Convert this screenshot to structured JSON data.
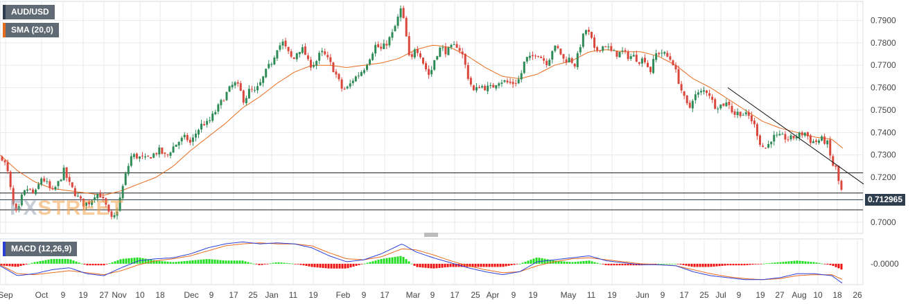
{
  "legend": {
    "symbol": "AUD/USD",
    "sma": "SMA (20,0)",
    "macd": "MACD (12,26,9)"
  },
  "watermark": {
    "fx": "FX",
    "street": "STREET"
  },
  "price_tag": "0.712965",
  "colors": {
    "up": "#2e8b57",
    "down": "#d9473d",
    "sma": "#e86c1e",
    "macd_line": "#2b3fd6",
    "signal_line": "#e86c1e",
    "hist_pos": "#22dd22",
    "hist_neg": "#ee1111",
    "grid": "#e9e9ee",
    "hline": "#1a1a1a"
  },
  "chart_data": {
    "type": "candlestick",
    "symbol": "AUD/USD",
    "price_axis": {
      "min": 0.695,
      "max": 0.7985,
      "ticks": [
        "0.7000",
        "0.7100",
        "0.7200",
        "0.7300",
        "0.7400",
        "0.7500",
        "0.7600",
        "0.7700",
        "0.7800",
        "0.7900"
      ]
    },
    "x_ticks": [
      "Sep",
      "Oct",
      "9",
      "19",
      "27",
      "Nov",
      "10",
      "18",
      "Dec",
      "9",
      "17",
      "25",
      "Jan",
      "11",
      "19",
      "Feb",
      "9",
      "17",
      "Mar",
      "9",
      "17",
      "25",
      "Apr",
      "9",
      "19",
      "May",
      "11",
      "19",
      "Jun",
      "9",
      "17",
      "25",
      "Jul",
      "9",
      "19",
      "27",
      "Aug",
      "10",
      "18",
      "26"
    ],
    "horizontal_lines": [
      0.722,
      0.713,
      0.7055
    ],
    "trendline": {
      "from": 0.76,
      "to": 0.717
    },
    "candle_anchors": [
      [
        0,
        0.731
      ],
      [
        10,
        0.724
      ],
      [
        20,
        0.706
      ],
      [
        25,
        0.703
      ],
      [
        32,
        0.712
      ],
      [
        40,
        0.715
      ],
      [
        50,
        0.712
      ],
      [
        60,
        0.72
      ],
      [
        68,
        0.717
      ],
      [
        75,
        0.713
      ],
      [
        85,
        0.718
      ],
      [
        92,
        0.723
      ],
      [
        100,
        0.717
      ],
      [
        110,
        0.712
      ],
      [
        120,
        0.708
      ],
      [
        130,
        0.709
      ],
      [
        138,
        0.713
      ],
      [
        145,
        0.712
      ],
      [
        153,
        0.707
      ],
      [
        160,
        0.701
      ],
      [
        167,
        0.703
      ],
      [
        175,
        0.713
      ],
      [
        182,
        0.722
      ],
      [
        190,
        0.73
      ],
      [
        200,
        0.729
      ],
      [
        210,
        0.728
      ],
      [
        220,
        0.73
      ],
      [
        230,
        0.732
      ],
      [
        240,
        0.729
      ],
      [
        248,
        0.733
      ],
      [
        258,
        0.736
      ],
      [
        268,
        0.738
      ],
      [
        275,
        0.735
      ],
      [
        283,
        0.74
      ],
      [
        292,
        0.744
      ],
      [
        300,
        0.744
      ],
      [
        310,
        0.749
      ],
      [
        320,
        0.754
      ],
      [
        330,
        0.759
      ],
      [
        338,
        0.762
      ],
      [
        345,
        0.76
      ],
      [
        352,
        0.754
      ],
      [
        360,
        0.759
      ],
      [
        368,
        0.758
      ],
      [
        376,
        0.762
      ],
      [
        385,
        0.768
      ],
      [
        393,
        0.772
      ],
      [
        400,
        0.778
      ],
      [
        408,
        0.78
      ],
      [
        415,
        0.776
      ],
      [
        423,
        0.772
      ],
      [
        430,
        0.777
      ],
      [
        438,
        0.777
      ],
      [
        446,
        0.77
      ],
      [
        455,
        0.771
      ],
      [
        463,
        0.776
      ],
      [
        470,
        0.774
      ],
      [
        478,
        0.77
      ],
      [
        486,
        0.765
      ],
      [
        494,
        0.759
      ],
      [
        502,
        0.76
      ],
      [
        510,
        0.764
      ],
      [
        518,
        0.766
      ],
      [
        526,
        0.769
      ],
      [
        534,
        0.774
      ],
      [
        542,
        0.779
      ],
      [
        550,
        0.777
      ],
      [
        558,
        0.78
      ],
      [
        566,
        0.784
      ],
      [
        572,
        0.789
      ],
      [
        578,
        0.795
      ],
      [
        584,
        0.788
      ],
      [
        588,
        0.778
      ],
      [
        592,
        0.77
      ],
      [
        598,
        0.778
      ],
      [
        605,
        0.776
      ],
      [
        612,
        0.77
      ],
      [
        620,
        0.765
      ],
      [
        628,
        0.774
      ],
      [
        636,
        0.778
      ],
      [
        644,
        0.776
      ],
      [
        652,
        0.778
      ],
      [
        660,
        0.779
      ],
      [
        668,
        0.774
      ],
      [
        676,
        0.764
      ],
      [
        684,
        0.758
      ],
      [
        692,
        0.761
      ],
      [
        700,
        0.76
      ],
      [
        710,
        0.76
      ],
      [
        718,
        0.763
      ],
      [
        726,
        0.763
      ],
      [
        734,
        0.762
      ],
      [
        742,
        0.762
      ],
      [
        750,
        0.764
      ],
      [
        758,
        0.773
      ],
      [
        766,
        0.773
      ],
      [
        774,
        0.776
      ],
      [
        782,
        0.773
      ],
      [
        790,
        0.771
      ],
      [
        798,
        0.778
      ],
      [
        806,
        0.777
      ],
      [
        814,
        0.772
      ],
      [
        822,
        0.773
      ],
      [
        830,
        0.77
      ],
      [
        838,
        0.78
      ],
      [
        845,
        0.786
      ],
      [
        852,
        0.783
      ],
      [
        858,
        0.776
      ],
      [
        866,
        0.778
      ],
      [
        874,
        0.779
      ],
      [
        882,
        0.776
      ],
      [
        890,
        0.775
      ],
      [
        898,
        0.776
      ],
      [
        906,
        0.774
      ],
      [
        914,
        0.774
      ],
      [
        922,
        0.772
      ],
      [
        930,
        0.773
      ],
      [
        938,
        0.767
      ],
      [
        946,
        0.775
      ],
      [
        954,
        0.776
      ],
      [
        962,
        0.774
      ],
      [
        970,
        0.772
      ],
      [
        978,
        0.764
      ],
      [
        986,
        0.756
      ],
      [
        994,
        0.75
      ],
      [
        1000,
        0.756
      ],
      [
        1006,
        0.757
      ],
      [
        1012,
        0.758
      ],
      [
        1018,
        0.759
      ],
      [
        1024,
        0.757
      ],
      [
        1030,
        0.752
      ],
      [
        1038,
        0.752
      ],
      [
        1046,
        0.753
      ],
      [
        1052,
        0.753
      ],
      [
        1058,
        0.748
      ],
      [
        1066,
        0.749
      ],
      [
        1074,
        0.748
      ],
      [
        1082,
        0.747
      ],
      [
        1090,
        0.742
      ],
      [
        1098,
        0.734
      ],
      [
        1106,
        0.733
      ],
      [
        1114,
        0.738
      ],
      [
        1122,
        0.738
      ],
      [
        1130,
        0.738
      ],
      [
        1138,
        0.737
      ],
      [
        1146,
        0.738
      ],
      [
        1154,
        0.739
      ],
      [
        1162,
        0.74
      ],
      [
        1170,
        0.736
      ],
      [
        1178,
        0.736
      ],
      [
        1186,
        0.737
      ],
      [
        1194,
        0.735
      ],
      [
        1200,
        0.726
      ],
      [
        1206,
        0.724
      ],
      [
        1212,
        0.715
      ],
      [
        1216,
        0.713
      ]
    ],
    "sma_anchors": [
      [
        0,
        0.73
      ],
      [
        25,
        0.723
      ],
      [
        50,
        0.718
      ],
      [
        75,
        0.715
      ],
      [
        100,
        0.714
      ],
      [
        125,
        0.713
      ],
      [
        150,
        0.712
      ],
      [
        175,
        0.714
      ],
      [
        200,
        0.717
      ],
      [
        225,
        0.72
      ],
      [
        250,
        0.725
      ],
      [
        275,
        0.732
      ],
      [
        300,
        0.738
      ],
      [
        325,
        0.744
      ],
      [
        350,
        0.751
      ],
      [
        375,
        0.756
      ],
      [
        400,
        0.762
      ],
      [
        425,
        0.767
      ],
      [
        450,
        0.77
      ],
      [
        475,
        0.77
      ],
      [
        500,
        0.769
      ],
      [
        525,
        0.77
      ],
      [
        550,
        0.771
      ],
      [
        575,
        0.773
      ],
      [
        600,
        0.777
      ],
      [
        625,
        0.779
      ],
      [
        650,
        0.778
      ],
      [
        675,
        0.774
      ],
      [
        700,
        0.769
      ],
      [
        725,
        0.765
      ],
      [
        750,
        0.764
      ],
      [
        775,
        0.766
      ],
      [
        800,
        0.77
      ],
      [
        825,
        0.772
      ],
      [
        850,
        0.776
      ],
      [
        875,
        0.777
      ],
      [
        900,
        0.776
      ],
      [
        925,
        0.776
      ],
      [
        950,
        0.774
      ],
      [
        975,
        0.77
      ],
      [
        1000,
        0.764
      ],
      [
        1025,
        0.76
      ],
      [
        1050,
        0.755
      ],
      [
        1075,
        0.75
      ],
      [
        1100,
        0.745
      ],
      [
        1125,
        0.742
      ],
      [
        1150,
        0.74
      ],
      [
        1175,
        0.738
      ],
      [
        1200,
        0.737
      ],
      [
        1216,
        0.733
      ]
    ],
    "macd_panel": {
      "label": "MACD (12,26,9)",
      "tick": "-0.0000",
      "zero_value": 0.0,
      "range": [
        -0.0105,
        0.0125
      ],
      "macd_anchors": [
        [
          0,
          -0.001
        ],
        [
          25,
          -0.006
        ],
        [
          50,
          -0.005
        ],
        [
          75,
          -0.003
        ],
        [
          100,
          -0.002
        ],
        [
          125,
          -0.005
        ],
        [
          150,
          -0.006
        ],
        [
          175,
          -0.002
        ],
        [
          200,
          0.0015
        ],
        [
          225,
          0.0025
        ],
        [
          250,
          0.003
        ],
        [
          275,
          0.005
        ],
        [
          300,
          0.008
        ],
        [
          325,
          0.01
        ],
        [
          350,
          0.011
        ],
        [
          375,
          0.01
        ],
        [
          400,
          0.0105
        ],
        [
          425,
          0.01
        ],
        [
          450,
          0.008
        ],
        [
          475,
          0.004
        ],
        [
          500,
          0.001
        ],
        [
          525,
          0.002
        ],
        [
          550,
          0.005
        ],
        [
          580,
          0.01
        ],
        [
          600,
          0.006
        ],
        [
          625,
          0.003
        ],
        [
          650,
          0.0005
        ],
        [
          675,
          -0.002
        ],
        [
          700,
          -0.004
        ],
        [
          725,
          -0.0055
        ],
        [
          750,
          -0.004
        ],
        [
          775,
          0.001
        ],
        [
          800,
          0.002
        ],
        [
          825,
          0.003
        ],
        [
          850,
          0.004
        ],
        [
          875,
          0.0015
        ],
        [
          900,
          0.0005
        ],
        [
          925,
          -0.0005
        ],
        [
          950,
          -0.0005
        ],
        [
          975,
          -0.001
        ],
        [
          1000,
          -0.004
        ],
        [
          1025,
          -0.006
        ],
        [
          1050,
          -0.007
        ],
        [
          1075,
          -0.008
        ],
        [
          1100,
          -0.008
        ],
        [
          1125,
          -0.007
        ],
        [
          1150,
          -0.005
        ],
        [
          1175,
          -0.005
        ],
        [
          1200,
          -0.006
        ],
        [
          1216,
          -0.01
        ]
      ],
      "signal_anchors": [
        [
          0,
          -0.0005
        ],
        [
          25,
          -0.005
        ],
        [
          50,
          -0.0055
        ],
        [
          75,
          -0.0045
        ],
        [
          100,
          -0.0035
        ],
        [
          125,
          -0.0045
        ],
        [
          150,
          -0.0055
        ],
        [
          175,
          -0.0035
        ],
        [
          200,
          -0.0005
        ],
        [
          225,
          0.0015
        ],
        [
          250,
          0.0025
        ],
        [
          275,
          0.004
        ],
        [
          300,
          0.0065
        ],
        [
          325,
          0.009
        ],
        [
          350,
          0.01
        ],
        [
          375,
          0.0105
        ],
        [
          400,
          0.01
        ],
        [
          425,
          0.01
        ],
        [
          450,
          0.009
        ],
        [
          475,
          0.0055
        ],
        [
          500,
          0.0025
        ],
        [
          525,
          0.002
        ],
        [
          550,
          0.0035
        ],
        [
          580,
          0.0075
        ],
        [
          600,
          0.007
        ],
        [
          625,
          0.0045
        ],
        [
          650,
          0.0015
        ],
        [
          675,
          -0.001
        ],
        [
          700,
          -0.003
        ],
        [
          725,
          -0.0045
        ],
        [
          750,
          -0.004
        ],
        [
          775,
          -0.001
        ],
        [
          800,
          0.001
        ],
        [
          825,
          0.0025
        ],
        [
          850,
          0.003
        ],
        [
          875,
          0.002
        ],
        [
          900,
          0.001
        ],
        [
          925,
          0.0
        ],
        [
          950,
          -0.0005
        ],
        [
          975,
          -0.001
        ],
        [
          1000,
          -0.003
        ],
        [
          1025,
          -0.005
        ],
        [
          1050,
          -0.0065
        ],
        [
          1075,
          -0.0075
        ],
        [
          1100,
          -0.008
        ],
        [
          1125,
          -0.0075
        ],
        [
          1150,
          -0.006
        ],
        [
          1175,
          -0.0055
        ],
        [
          1200,
          -0.0055
        ],
        [
          1216,
          -0.008
        ]
      ]
    }
  }
}
